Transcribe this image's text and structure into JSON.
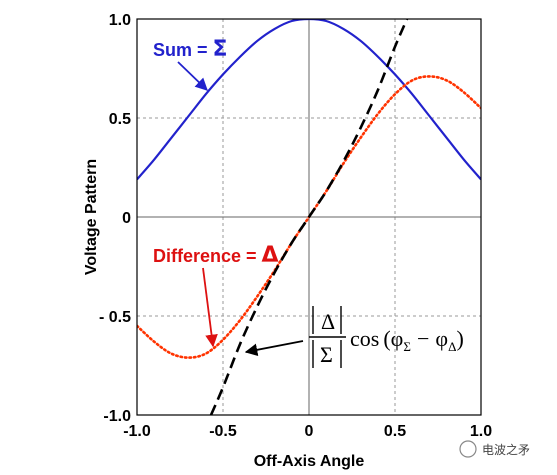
{
  "chart_data": {
    "type": "line",
    "title": "",
    "xlabel": "Off-Axis Angle",
    "ylabel": "Voltage Pattern",
    "xlim": [
      -1.0,
      1.0
    ],
    "ylim": [
      -1.0,
      1.0
    ],
    "grid": "dashed",
    "x_ticks": [
      -1.0,
      -0.5,
      0,
      0.5,
      1.0
    ],
    "x_tick_labels": [
      "-1.0",
      "-0.5",
      "0",
      "0.5",
      "1.0"
    ],
    "y_ticks": [
      -1.0,
      -0.5,
      0,
      0.5,
      1.0
    ],
    "y_tick_labels": [
      "-1.0",
      "- 0.5",
      "0",
      "0.5",
      "1.0"
    ],
    "series": [
      {
        "name": "Sum = Σ",
        "color": "#2222cc",
        "style": "solid",
        "x": [
          -1.0,
          -0.9,
          -0.8,
          -0.7,
          -0.6,
          -0.5,
          -0.4,
          -0.3,
          -0.2,
          -0.1,
          0.0,
          0.1,
          0.2,
          0.3,
          0.4,
          0.5,
          0.6,
          0.7,
          0.8,
          0.9,
          1.0
        ],
        "y": [
          0.19,
          0.29,
          0.4,
          0.51,
          0.62,
          0.72,
          0.81,
          0.89,
          0.95,
          0.99,
          1.0,
          0.99,
          0.95,
          0.89,
          0.81,
          0.72,
          0.62,
          0.51,
          0.4,
          0.29,
          0.19
        ]
      },
      {
        "name": "Difference = Δ",
        "color": "#ff3300",
        "style": "dotted",
        "x": [
          -1.0,
          -0.9,
          -0.8,
          -0.7,
          -0.6,
          -0.5,
          -0.4,
          -0.3,
          -0.2,
          -0.1,
          0.0,
          0.1,
          0.2,
          0.3,
          0.4,
          0.5,
          0.6,
          0.7,
          0.8,
          0.9,
          1.0
        ],
        "y": [
          -0.55,
          -0.63,
          -0.69,
          -0.71,
          -0.69,
          -0.62,
          -0.52,
          -0.4,
          -0.27,
          -0.13,
          0.0,
          0.13,
          0.27,
          0.4,
          0.52,
          0.62,
          0.69,
          0.71,
          0.69,
          0.63,
          0.55
        ]
      },
      {
        "name": "|Δ|/|Σ| cos(φΣ − φΔ)",
        "color": "#000000",
        "style": "dashed",
        "x": [
          -0.57,
          -0.5,
          -0.4,
          -0.3,
          -0.2,
          -0.1,
          0.0,
          0.1,
          0.2,
          0.3,
          0.4,
          0.5,
          0.57
        ],
        "y": [
          -1.0,
          -0.86,
          -0.64,
          -0.45,
          -0.28,
          -0.13,
          0.0,
          0.13,
          0.28,
          0.45,
          0.64,
          0.86,
          1.0
        ]
      }
    ]
  },
  "annotations": {
    "sum_label": "Sum = ",
    "sum_symbol": "Σ",
    "diff_label": "Difference = ",
    "diff_symbol": "Δ",
    "formula_num": "Δ",
    "formula_den": "Σ",
    "formula_cos": "cos",
    "formula_phi": "φ",
    "formula_sub_sigma": "Σ",
    "formula_sub_delta": "Δ",
    "formula_minus": "−",
    "formula_open": "(",
    "formula_close": ")"
  },
  "watermark": "电波之矛"
}
